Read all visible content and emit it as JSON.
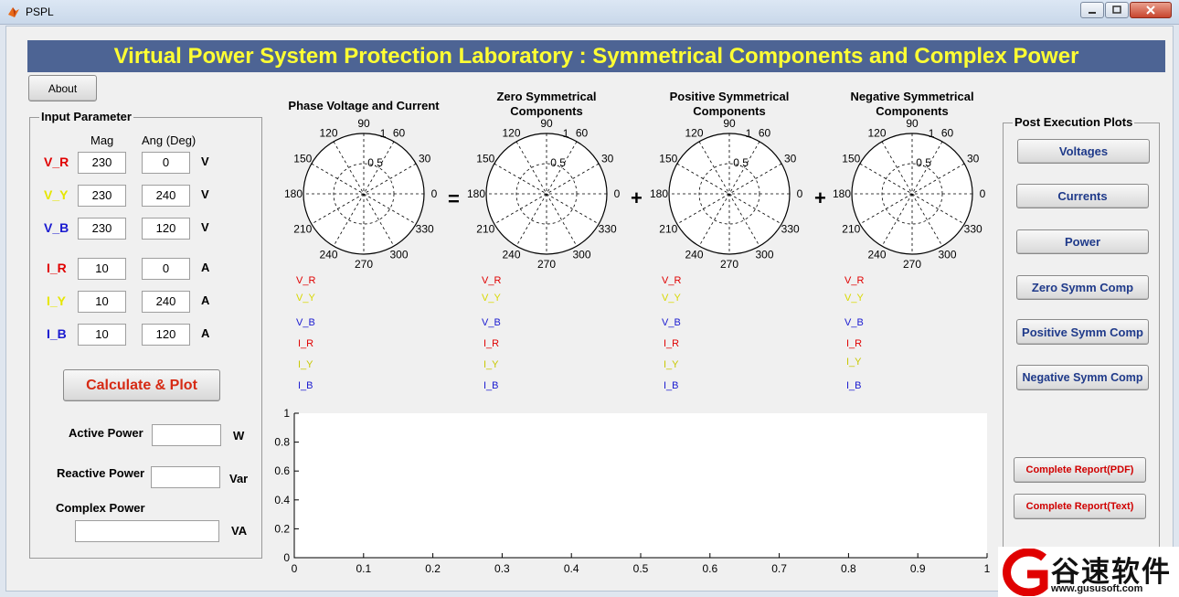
{
  "window": {
    "title": "PSPL"
  },
  "banner": {
    "title": "Virtual Power System Protection Laboratory : Symmetrical Components and Complex Power"
  },
  "about_button": "About",
  "input_panel": {
    "title": "Input Parameter",
    "col_mag": "Mag",
    "col_ang": "Ang (Deg)",
    "rows": [
      {
        "label": "V_R",
        "mag": "230",
        "ang": "0",
        "unit": "V",
        "color": "#e00000"
      },
      {
        "label": "V_Y",
        "mag": "230",
        "ang": "240",
        "unit": "V",
        "color": "#e6e600"
      },
      {
        "label": "V_B",
        "mag": "230",
        "ang": "120",
        "unit": "V",
        "color": "#1a1ad0"
      },
      {
        "label": "I_R",
        "mag": "10",
        "ang": "0",
        "unit": "A",
        "color": "#e00000"
      },
      {
        "label": "I_Y",
        "mag": "10",
        "ang": "240",
        "unit": "A",
        "color": "#e6e600"
      },
      {
        "label": "I_B",
        "mag": "10",
        "ang": "120",
        "unit": "A",
        "color": "#1a1ad0"
      }
    ],
    "calc_button": "Calculate & Plot",
    "active_power_label": "Active Power",
    "active_power_unit": "W",
    "reactive_power_label": "Reactive Power",
    "reactive_power_unit": "Var",
    "complex_power_label": "Complex Power",
    "complex_power_unit": "VA"
  },
  "polar_plots": [
    {
      "title1": "Phase Voltage and Current",
      "title2": ""
    },
    {
      "title1": "Zero Symmetrical",
      "title2": "Components"
    },
    {
      "title1": "Positive Symmetrical",
      "title2": "Components"
    },
    {
      "title1": "Negative Symmetrical",
      "title2": "Components"
    }
  ],
  "polar_axis": {
    "angle_labels": [
      "0",
      "30",
      "60",
      "90",
      "120",
      "150",
      "180",
      "210",
      "240",
      "270",
      "300",
      "330"
    ],
    "radial_labels": [
      "0.5",
      "1"
    ]
  },
  "operators": [
    "=",
    "+",
    "+"
  ],
  "legend_items": [
    {
      "label": "V_R",
      "color": "#e00000"
    },
    {
      "label": "V_Y",
      "color": "#d8d800"
    },
    {
      "label": "V_B",
      "color": "#1a1ad0"
    },
    {
      "label": "I_R",
      "color": "#e00000"
    },
    {
      "label": "I_Y",
      "color": "#c8c800"
    },
    {
      "label": "I_B",
      "color": "#1a1ad0"
    }
  ],
  "bottom_axes": {
    "x_ticks": [
      "0",
      "0.1",
      "0.2",
      "0.3",
      "0.4",
      "0.5",
      "0.6",
      "0.7",
      "0.8",
      "0.9",
      "1"
    ],
    "y_ticks": [
      "0",
      "0.2",
      "0.4",
      "0.6",
      "0.8",
      "1"
    ]
  },
  "post_panel": {
    "title": "Post Execution Plots",
    "buttons": [
      "Voltages",
      "Currents",
      "Power",
      "Zero Symm Comp",
      "Positive Symm Comp",
      "Negative Symm Comp"
    ],
    "report_pdf": "Complete Report(PDF)",
    "report_text": "Complete Report(Text)"
  },
  "watermark": {
    "brand": "谷速软件",
    "url": "www.gususoft.com"
  }
}
